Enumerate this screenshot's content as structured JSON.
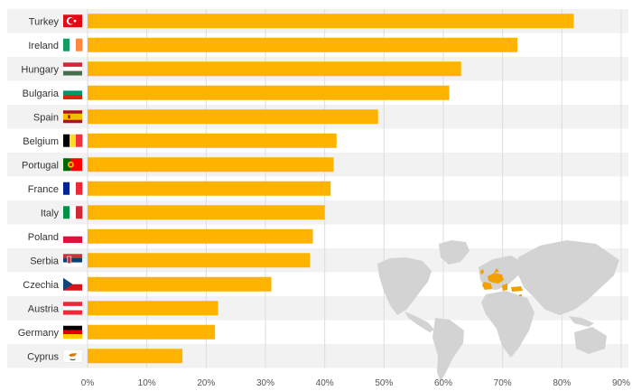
{
  "chart_data": {
    "type": "bar",
    "orientation": "horizontal",
    "title": "",
    "xlabel": "",
    "ylabel": "",
    "xlim": [
      0,
      90
    ],
    "x_ticks": [
      0,
      10,
      20,
      30,
      40,
      50,
      60,
      70,
      80,
      90
    ],
    "tick_suffix": "%",
    "grid": true,
    "categories": [
      "Turkey",
      "Ireland",
      "Hungary",
      "Bulgaria",
      "Spain",
      "Belgium",
      "Portugal",
      "France",
      "Italy",
      "Poland",
      "Serbia",
      "Czechia",
      "Austria",
      "Germany",
      "Cyprus"
    ],
    "values": [
      82,
      72.5,
      63,
      61,
      49,
      42,
      41.5,
      41,
      40,
      38,
      37.5,
      31,
      22,
      21.5,
      16
    ],
    "bar_color": "#fdb300",
    "row_band_color": "#f2f2f2",
    "map_land_color": "#d3d3d3",
    "map_highlight_color": "#f2a000"
  },
  "flags": {
    "Turkey": {
      "type": "turkey",
      "colors": [
        "#e30a17",
        "#ffffff"
      ]
    },
    "Ireland": {
      "type": "vertical",
      "colors": [
        "#169b62",
        "#ffffff",
        "#ff883e"
      ]
    },
    "Hungary": {
      "type": "horizontal",
      "colors": [
        "#cd2a3e",
        "#ffffff",
        "#436f4d"
      ]
    },
    "Bulgaria": {
      "type": "horizontal",
      "colors": [
        "#ffffff",
        "#00966e",
        "#d62612"
      ]
    },
    "Spain": {
      "type": "spain",
      "colors": [
        "#aa151b",
        "#f1bf00"
      ]
    },
    "Belgium": {
      "type": "vertical",
      "colors": [
        "#000000",
        "#fdda24",
        "#ef3340"
      ]
    },
    "Portugal": {
      "type": "portugal",
      "colors": [
        "#006600",
        "#ff0000",
        "#ffcc00"
      ]
    },
    "France": {
      "type": "vertical",
      "colors": [
        "#002395",
        "#ffffff",
        "#ed2939"
      ]
    },
    "Italy": {
      "type": "vertical",
      "colors": [
        "#009246",
        "#ffffff",
        "#ce2b37"
      ]
    },
    "Poland": {
      "type": "horizontal",
      "colors": [
        "#ffffff",
        "#dc143c"
      ]
    },
    "Serbia": {
      "type": "serbia",
      "colors": [
        "#c6363c",
        "#0c4076",
        "#ffffff"
      ]
    },
    "Czechia": {
      "type": "czech",
      "colors": [
        "#ffffff",
        "#d7141a",
        "#11457e"
      ]
    },
    "Austria": {
      "type": "horizontal",
      "colors": [
        "#ed2939",
        "#ffffff",
        "#ed2939"
      ]
    },
    "Germany": {
      "type": "horizontal",
      "colors": [
        "#000000",
        "#dd0000",
        "#ffce00"
      ]
    },
    "Cyprus": {
      "type": "cyprus",
      "colors": [
        "#ffffff",
        "#d57800",
        "#4e5b31"
      ]
    }
  }
}
